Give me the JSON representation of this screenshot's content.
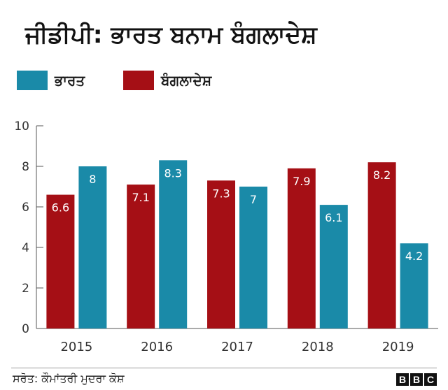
{
  "chart_data": {
    "type": "bar",
    "title": "ਜੀਡੀਪੀ: ਭਾਰਤ ਬਨਾਮ ਬੰਗਲਾਦੇਸ਼",
    "categories": [
      "2015",
      "2016",
      "2017",
      "2018",
      "2019"
    ],
    "series": [
      {
        "name": "ਬੰਗਲਾਦੇਸ਼",
        "color": "#a50f15",
        "values": [
          6.6,
          7.1,
          7.3,
          7.9,
          8.2
        ],
        "labels": [
          "6.6",
          "7.1",
          "7.3",
          "7.9",
          "8.2"
        ]
      },
      {
        "name": "ਭਾਰਤ",
        "color": "#1a8aa8",
        "values": [
          8,
          8.3,
          7,
          6.1,
          4.2
        ],
        "labels": [
          "8",
          "8.3",
          "7",
          "6.1",
          "4.2"
        ]
      }
    ],
    "yticks": [
      "0",
      "2",
      "4",
      "6",
      "8",
      "10"
    ],
    "ylim": [
      0,
      10
    ],
    "xlabel": "",
    "ylabel": "",
    "legend_position": "top-left"
  },
  "legend": {
    "india_label": "ਭਾਰਤ",
    "bangladesh_label": "ਬੰਗਲਾਦੇਸ਼",
    "india_color": "#1a8aa8",
    "bangladesh_color": "#a50f15"
  },
  "footer": {
    "source": "ਸਰੋਤ: ਕੌਮਾਂਤਰੀ ਮੁਦਰਾ ਕੋਸ਼",
    "logo_letters": [
      "B",
      "B",
      "C"
    ]
  }
}
